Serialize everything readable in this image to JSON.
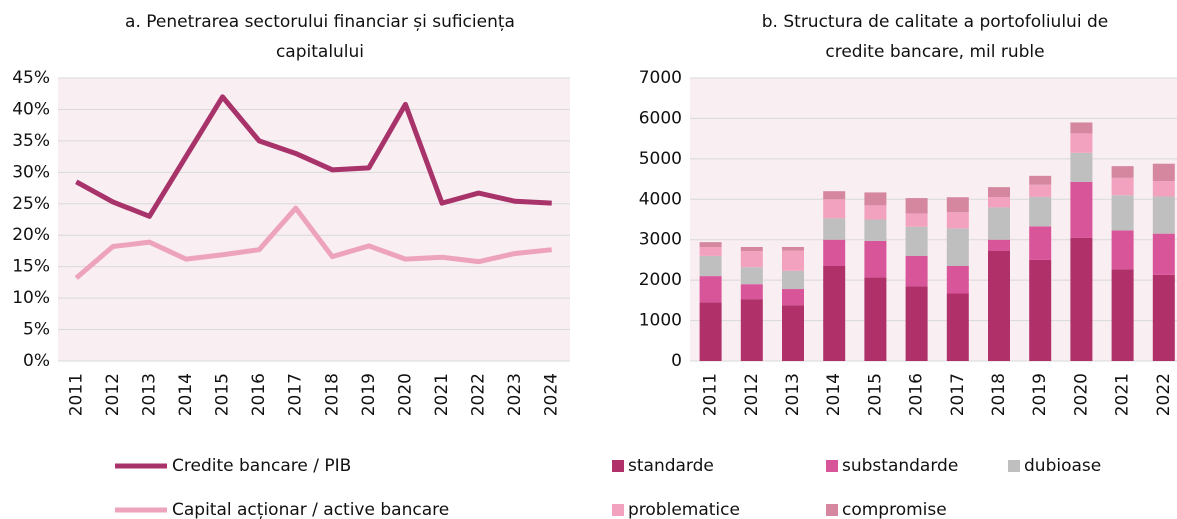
{
  "chart_data": [
    {
      "type": "line",
      "title": [
        "a. Penetrarea sectorului financiar și suficiența",
        "capitalului"
      ],
      "categories": [
        "2011",
        "2012",
        "2013",
        "2014",
        "2015",
        "2016",
        "2017",
        "2018",
        "2019",
        "2020",
        "2021",
        "2022",
        "2023",
        "2024"
      ],
      "series": [
        {
          "name": "Credite bancare / PIB",
          "color": "#a8336a",
          "values": [
            28.5,
            25.3,
            23,
            32.5,
            42,
            35,
            33,
            30.4,
            30.7,
            40.8,
            25.1,
            26.7,
            25.4,
            25.1
          ]
        },
        {
          "name": "Capital acționar / active bancare",
          "color": "#eea3bd",
          "values": [
            13.2,
            18.2,
            18.9,
            16.2,
            16.9,
            17.7,
            24.3,
            16.6,
            18.3,
            16.2,
            16.5,
            15.8,
            17.1,
            17.7
          ]
        }
      ],
      "ylim": [
        0,
        45
      ],
      "yticks": [
        {
          "value": 0,
          "label": "0%"
        },
        {
          "value": 5,
          "label": "5%"
        },
        {
          "value": 10,
          "label": "10%"
        },
        {
          "value": 15,
          "label": "15%"
        },
        {
          "value": 20,
          "label": "20%"
        },
        {
          "value": 25,
          "label": "25%"
        },
        {
          "value": 30,
          "label": "30%"
        },
        {
          "value": 35,
          "label": "35%"
        },
        {
          "value": 40,
          "label": "40%"
        },
        {
          "value": 45,
          "label": "45%"
        }
      ],
      "grid": true
    },
    {
      "type": "stacked_bar",
      "title": [
        "b. Structura de calitate a portofoliului de",
        "credite bancare, mil ruble"
      ],
      "categories": [
        "2011",
        "2012",
        "2013",
        "2014",
        "2015",
        "2016",
        "2017",
        "2018",
        "2019",
        "2020",
        "2021",
        "2022"
      ],
      "series": [
        {
          "name": "standarde",
          "color": "#b0306a",
          "values": [
            1450,
            1530,
            1380,
            2350,
            2070,
            1850,
            1670,
            2730,
            2500,
            3050,
            2270,
            2130
          ]
        },
        {
          "name": "substandarde",
          "color": "#d9559a",
          "values": [
            650,
            370,
            400,
            650,
            900,
            750,
            680,
            270,
            830,
            1380,
            960,
            1020
          ]
        },
        {
          "name": "dubioase",
          "color": "#bfbfbf",
          "values": [
            500,
            420,
            450,
            530,
            530,
            720,
            930,
            800,
            730,
            720,
            870,
            920
          ]
        },
        {
          "name": "problematice",
          "color": "#f2a2bf",
          "values": [
            220,
            400,
            500,
            470,
            350,
            330,
            400,
            250,
            300,
            480,
            430,
            380
          ]
        },
        {
          "name": "compromise",
          "color": "#d4879f",
          "values": [
            120,
            100,
            90,
            200,
            320,
            380,
            370,
            250,
            220,
            270,
            290,
            430
          ]
        }
      ],
      "ylim": [
        0,
        7000
      ],
      "yticks": [
        0,
        1000,
        2000,
        3000,
        4000,
        5000,
        6000,
        7000
      ],
      "grid": true
    }
  ]
}
